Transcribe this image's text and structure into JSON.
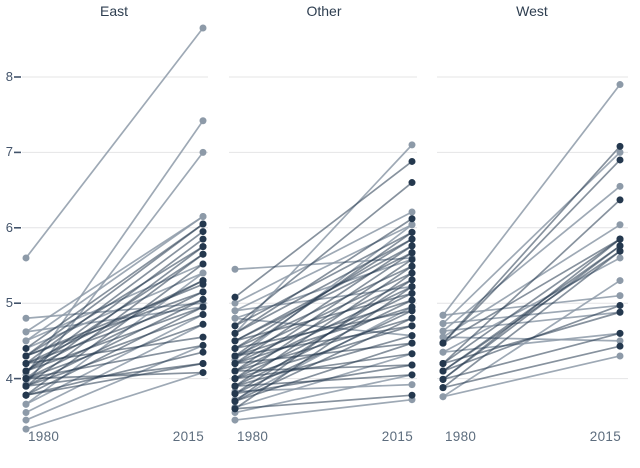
{
  "axes": {
    "y_tick_labels": [
      "8",
      "7",
      "6",
      "5",
      "4"
    ],
    "x_tick_labels": [
      "1980",
      "2015"
    ],
    "ylim": [
      3.1,
      8.9
    ],
    "grid": "horizontal-only"
  },
  "colors": {
    "light_series": "#8d9aa8",
    "dark_series": "#24384e",
    "gridline": "#e4e4e6",
    "axis_tick": "#42536a",
    "x_label": "#5d6d7e",
    "title": "#2e3e50",
    "background": "#ffffff"
  },
  "chart_data": [
    {
      "type": "slope",
      "title": "East",
      "x": [
        "1980",
        "2015"
      ],
      "ylim": [
        3.1,
        8.9
      ],
      "lines": [
        {
          "y1980": 5.6,
          "y2015": 8.65,
          "shade": "light"
        },
        {
          "y1980": 4.05,
          "y2015": 7.42,
          "shade": "light"
        },
        {
          "y1980": 3.92,
          "y2015": 7.0,
          "shade": "light"
        },
        {
          "y1980": 4.8,
          "y2015": 5.0,
          "shade": "light"
        },
        {
          "y1980": 4.62,
          "y2015": 6.15,
          "shade": "light"
        },
        {
          "y1980": 4.5,
          "y2015": 6.15,
          "shade": "light"
        },
        {
          "y1980": 4.5,
          "y2015": 5.52,
          "shade": "light"
        },
        {
          "y1980": 4.4,
          "y2015": 5.4,
          "shade": "light"
        },
        {
          "y1980": 3.66,
          "y2015": 5.4,
          "shade": "light"
        },
        {
          "y1980": 3.66,
          "y2015": 4.85,
          "shade": "light"
        },
        {
          "y1980": 3.55,
          "y2015": 4.72,
          "shade": "light"
        },
        {
          "y1980": 3.45,
          "y2015": 4.44,
          "shade": "light"
        },
        {
          "y1980": 3.33,
          "y2015": 4.08,
          "shade": "light"
        },
        {
          "y1980": 4.62,
          "y2015": 4.95,
          "shade": "light"
        },
        {
          "y1980": 4.4,
          "y2015": 6.05,
          "shade": "dark"
        },
        {
          "y1980": 4.3,
          "y2015": 6.05,
          "shade": "dark"
        },
        {
          "y1980": 4.3,
          "y2015": 5.75,
          "shade": "dark"
        },
        {
          "y1980": 4.3,
          "y2015": 5.25,
          "shade": "dark"
        },
        {
          "y1980": 4.3,
          "y2015": 5.15,
          "shade": "dark"
        },
        {
          "y1980": 4.2,
          "y2015": 5.95,
          "shade": "dark"
        },
        {
          "y1980": 4.2,
          "y2015": 5.3,
          "shade": "dark"
        },
        {
          "y1980": 4.2,
          "y2015": 5.05,
          "shade": "dark"
        },
        {
          "y1980": 4.2,
          "y2015": 4.55,
          "shade": "dark"
        },
        {
          "y1980": 4.1,
          "y2015": 5.85,
          "shade": "dark"
        },
        {
          "y1980": 4.1,
          "y2015": 5.65,
          "shade": "dark"
        },
        {
          "y1980": 4.1,
          "y2015": 5.3,
          "shade": "dark"
        },
        {
          "y1980": 4.1,
          "y2015": 4.95,
          "shade": "dark"
        },
        {
          "y1980": 4.0,
          "y2015": 5.75,
          "shade": "dark"
        },
        {
          "y1980": 4.0,
          "y2015": 5.15,
          "shade": "dark"
        },
        {
          "y1980": 4.0,
          "y2015": 4.85,
          "shade": "dark"
        },
        {
          "y1980": 4.0,
          "y2015": 4.44,
          "shade": "dark"
        },
        {
          "y1980": 4.0,
          "y2015": 4.08,
          "shade": "dark"
        },
        {
          "y1980": 3.9,
          "y2015": 5.65,
          "shade": "dark"
        },
        {
          "y1980": 3.9,
          "y2015": 5.05,
          "shade": "dark"
        },
        {
          "y1980": 3.9,
          "y2015": 4.72,
          "shade": "dark"
        },
        {
          "y1980": 3.9,
          "y2015": 4.2,
          "shade": "dark"
        },
        {
          "y1980": 3.78,
          "y2015": 5.52,
          "shade": "dark"
        },
        {
          "y1980": 3.78,
          "y2015": 4.95,
          "shade": "dark"
        },
        {
          "y1980": 3.78,
          "y2015": 4.35,
          "shade": "dark"
        },
        {
          "y1980": 3.78,
          "y2015": 4.2,
          "shade": "dark"
        }
      ]
    },
    {
      "type": "slope",
      "title": "Other",
      "x": [
        "1980",
        "2015"
      ],
      "ylim": [
        3.1,
        8.9
      ],
      "lines": [
        {
          "y1980": 5.45,
          "y2015": 5.6,
          "shade": "light"
        },
        {
          "y1980": 3.45,
          "y2015": 3.72,
          "shade": "light"
        },
        {
          "y1980": 4.6,
          "y2015": 7.1,
          "shade": "light"
        },
        {
          "y1980": 5.0,
          "y2015": 6.21,
          "shade": "light"
        },
        {
          "y1980": 4.9,
          "y2015": 6.04,
          "shade": "light"
        },
        {
          "y1980": 4.9,
          "y2015": 5.22,
          "shade": "light"
        },
        {
          "y1980": 4.8,
          "y2015": 5.58,
          "shade": "light"
        },
        {
          "y1980": 4.8,
          "y2015": 4.57,
          "shade": "light"
        },
        {
          "y1980": 4.25,
          "y2015": 6.04,
          "shade": "light"
        },
        {
          "y1980": 3.83,
          "y2015": 3.92,
          "shade": "light"
        },
        {
          "y1980": 3.72,
          "y2015": 4.95,
          "shade": "light"
        },
        {
          "y1980": 3.62,
          "y2015": 4.33,
          "shade": "light"
        },
        {
          "y1980": 3.55,
          "y2015": 4.05,
          "shade": "light"
        },
        {
          "y1980": 5.08,
          "y2015": 6.88,
          "shade": "dark"
        },
        {
          "y1980": 4.7,
          "y2015": 6.6,
          "shade": "dark"
        },
        {
          "y1980": 4.7,
          "y2015": 5.94,
          "shade": "dark"
        },
        {
          "y1980": 4.6,
          "y2015": 6.12,
          "shade": "dark"
        },
        {
          "y1980": 4.6,
          "y2015": 5.85,
          "shade": "dark"
        },
        {
          "y1980": 4.5,
          "y2015": 5.76,
          "shade": "dark"
        },
        {
          "y1980": 4.5,
          "y2015": 5.67,
          "shade": "dark"
        },
        {
          "y1980": 4.5,
          "y2015": 5.13,
          "shade": "dark"
        },
        {
          "y1980": 4.4,
          "y2015": 5.85,
          "shade": "dark"
        },
        {
          "y1980": 4.4,
          "y2015": 5.49,
          "shade": "dark"
        },
        {
          "y1980": 4.4,
          "y2015": 4.9,
          "shade": "dark"
        },
        {
          "y1980": 4.3,
          "y2015": 5.94,
          "shade": "dark"
        },
        {
          "y1980": 4.3,
          "y2015": 5.4,
          "shade": "dark"
        },
        {
          "y1980": 4.3,
          "y2015": 5.04,
          "shade": "dark"
        },
        {
          "y1980": 4.3,
          "y2015": 4.7,
          "shade": "dark"
        },
        {
          "y1980": 4.2,
          "y2015": 5.76,
          "shade": "dark"
        },
        {
          "y1980": 4.2,
          "y2015": 5.31,
          "shade": "dark"
        },
        {
          "y1980": 4.2,
          "y2015": 4.95,
          "shade": "dark"
        },
        {
          "y1980": 4.2,
          "y2015": 4.47,
          "shade": "dark"
        },
        {
          "y1980": 4.1,
          "y2015": 5.67,
          "shade": "dark"
        },
        {
          "y1980": 4.1,
          "y2015": 5.22,
          "shade": "dark"
        },
        {
          "y1980": 4.1,
          "y2015": 4.8,
          "shade": "dark"
        },
        {
          "y1980": 4.1,
          "y2015": 4.18,
          "shade": "dark"
        },
        {
          "y1980": 4.0,
          "y2015": 5.58,
          "shade": "dark"
        },
        {
          "y1980": 4.0,
          "y2015": 5.13,
          "shade": "dark"
        },
        {
          "y1980": 4.0,
          "y2015": 4.7,
          "shade": "dark"
        },
        {
          "y1980": 4.0,
          "y2015": 4.33,
          "shade": "dark"
        },
        {
          "y1980": 3.9,
          "y2015": 5.49,
          "shade": "dark"
        },
        {
          "y1980": 3.9,
          "y2015": 5.04,
          "shade": "dark"
        },
        {
          "y1980": 3.9,
          "y2015": 4.57,
          "shade": "dark"
        },
        {
          "y1980": 3.9,
          "y2015": 4.05,
          "shade": "dark"
        },
        {
          "y1980": 3.8,
          "y2015": 5.31,
          "shade": "dark"
        },
        {
          "y1980": 3.8,
          "y2015": 4.9,
          "shade": "dark"
        },
        {
          "y1980": 3.8,
          "y2015": 4.18,
          "shade": "dark"
        },
        {
          "y1980": 3.7,
          "y2015": 5.4,
          "shade": "dark"
        },
        {
          "y1980": 3.7,
          "y2015": 4.8,
          "shade": "dark"
        },
        {
          "y1980": 3.7,
          "y2015": 4.47,
          "shade": "dark"
        },
        {
          "y1980": 3.6,
          "y2015": 5.22,
          "shade": "dark"
        },
        {
          "y1980": 3.6,
          "y2015": 3.78,
          "shade": "dark"
        }
      ]
    },
    {
      "type": "slope",
      "title": "West",
      "x": [
        "1980",
        "2015"
      ],
      "ylim": [
        3.1,
        8.9
      ],
      "lines": [
        {
          "y1980": 4.84,
          "y2015": 7.9,
          "shade": "light"
        },
        {
          "y1980": 4.73,
          "y2015": 7.0,
          "shade": "light"
        },
        {
          "y1980": 4.63,
          "y2015": 6.55,
          "shade": "light"
        },
        {
          "y1980": 4.55,
          "y2015": 6.04,
          "shade": "light"
        },
        {
          "y1980": 4.35,
          "y2015": 5.6,
          "shade": "light"
        },
        {
          "y1980": 3.76,
          "y2015": 5.3,
          "shade": "light"
        },
        {
          "y1980": 4.84,
          "y2015": 5.1,
          "shade": "light"
        },
        {
          "y1980": 4.73,
          "y2015": 4.97,
          "shade": "light"
        },
        {
          "y1980": 4.63,
          "y2015": 4.88,
          "shade": "light"
        },
        {
          "y1980": 4.55,
          "y2015": 4.5,
          "shade": "light"
        },
        {
          "y1980": 4.35,
          "y2015": 4.6,
          "shade": "light"
        },
        {
          "y1980": 3.76,
          "y2015": 4.3,
          "shade": "light"
        },
        {
          "y1980": 4.47,
          "y2015": 7.08,
          "shade": "dark"
        },
        {
          "y1980": 4.47,
          "y2015": 6.9,
          "shade": "dark"
        },
        {
          "y1980": 4.47,
          "y2015": 5.85,
          "shade": "dark"
        },
        {
          "y1980": 4.2,
          "y2015": 6.37,
          "shade": "dark"
        },
        {
          "y1980": 4.2,
          "y2015": 5.85,
          "shade": "dark"
        },
        {
          "y1980": 4.2,
          "y2015": 4.88,
          "shade": "dark"
        },
        {
          "y1980": 4.1,
          "y2015": 5.76,
          "shade": "dark"
        },
        {
          "y1980": 4.1,
          "y2015": 5.69,
          "shade": "dark"
        },
        {
          "y1980": 4.1,
          "y2015": 4.97,
          "shade": "dark"
        },
        {
          "y1980": 3.99,
          "y2015": 5.85,
          "shade": "dark"
        },
        {
          "y1980": 3.99,
          "y2015": 5.76,
          "shade": "dark"
        },
        {
          "y1980": 3.99,
          "y2015": 4.6,
          "shade": "dark"
        },
        {
          "y1980": 3.88,
          "y2015": 5.69,
          "shade": "dark"
        },
        {
          "y1980": 3.88,
          "y2015": 4.43,
          "shade": "dark"
        }
      ]
    }
  ]
}
